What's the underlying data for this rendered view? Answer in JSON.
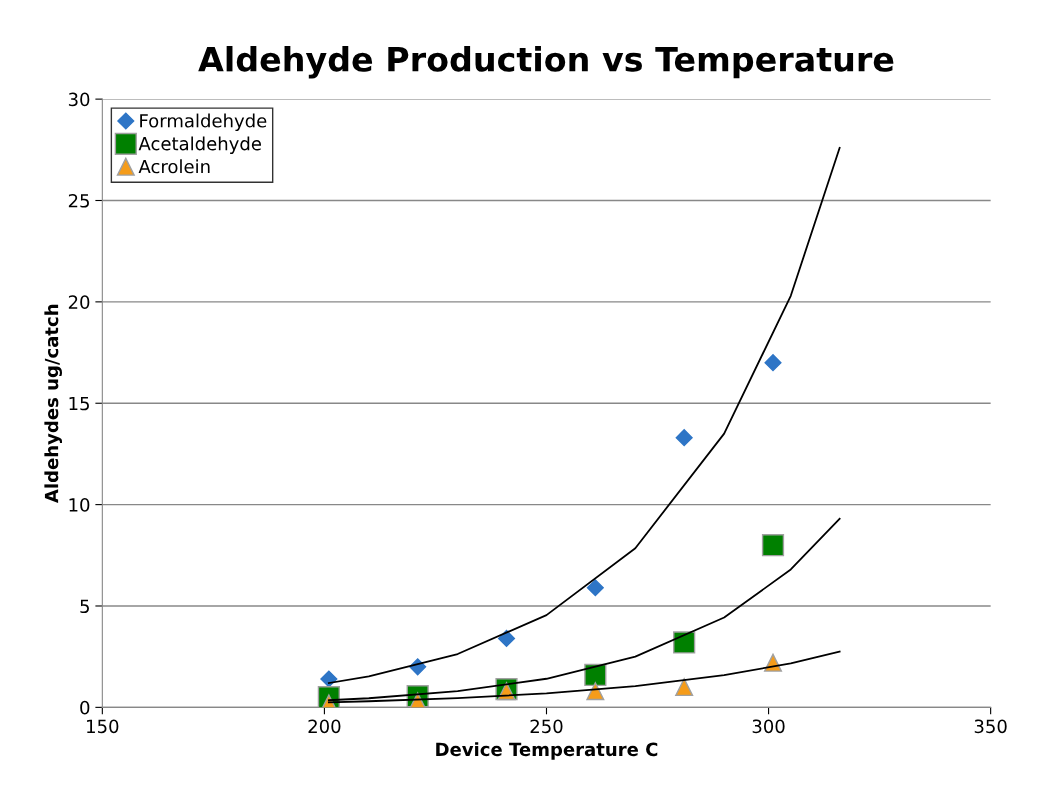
{
  "chart_data": {
    "type": "scatter",
    "title": "Aldehyde Production vs Temperature",
    "xlabel": "Device Temperature C",
    "ylabel": "Aldehydes ug/catch",
    "xlim": [
      150,
      350
    ],
    "xticks": [
      150,
      200,
      250,
      300,
      350
    ],
    "ylim": [
      0,
      30
    ],
    "yticks": [
      0,
      5,
      10,
      15,
      20,
      25,
      30
    ],
    "grid": "y",
    "legend": "top left",
    "series": [
      {
        "name": "Formaldehyde",
        "color": "#2e75c6",
        "marker": "diamond",
        "x": [
          201,
          221,
          241,
          261,
          281,
          301
        ],
        "values": [
          1.4,
          2.0,
          3.4,
          5.9,
          13.3,
          17.0
        ]
      },
      {
        "name": "Acetaldehyde",
        "color": "#008000",
        "marker": "square",
        "x": [
          201,
          221,
          241,
          261,
          281,
          301
        ],
        "values": [
          0.5,
          0.55,
          0.9,
          1.6,
          3.2,
          8.0
        ]
      },
      {
        "name": "Acrolein",
        "color": "#f59c1a",
        "marker": "triangle",
        "x": [
          201,
          221,
          241,
          261,
          281,
          301
        ],
        "values": [
          0.2,
          0.3,
          0.8,
          0.8,
          1.0,
          2.2
        ]
      },
      {
        "type": "line",
        "color": "#000000",
        "marker": "none",
        "x": [
          201,
          210,
          230,
          250,
          270,
          290,
          305,
          316
        ],
        "values": [
          1.2,
          1.53,
          2.63,
          4.55,
          7.85,
          13.5,
          20.3,
          27.6
        ]
      },
      {
        "type": "line",
        "color": "#000000",
        "marker": "none",
        "x": [
          201,
          210,
          230,
          250,
          270,
          290,
          305,
          316
        ],
        "values": [
          0.35,
          0.45,
          0.8,
          1.41,
          2.5,
          4.43,
          6.8,
          9.3
        ]
      },
      {
        "type": "line",
        "color": "#000000",
        "marker": "none",
        "x": [
          201,
          210,
          230,
          250,
          270,
          290,
          305,
          316
        ],
        "values": [
          0.25,
          0.3,
          0.46,
          0.69,
          1.05,
          1.59,
          2.17,
          2.75
        ]
      }
    ]
  }
}
